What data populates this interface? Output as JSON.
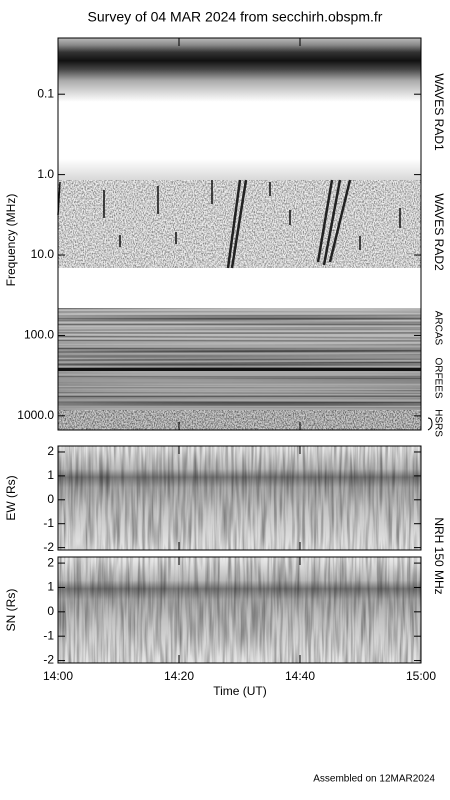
{
  "chart_data": [
    {
      "type": "spectrogram",
      "title": "Survey of 04 MAR 2024 from secchirh.obspm.fr",
      "ylabel": "Frequency (MHz)",
      "log": true,
      "inverted": true,
      "ylim": [
        0.02,
        1500
      ],
      "yticks": [
        0.1,
        {
          "value": 1,
          "label": "1.0"
        },
        {
          "value": 10,
          "label": "10.0"
        },
        {
          "value": 100,
          "label": "100.0"
        },
        {
          "value": 1000,
          "label": "1000.0"
        }
      ],
      "instruments": [
        "WAVES RAD1",
        "WAVES RAD2",
        "ARCAS",
        "ORFEES",
        "HSRS"
      ]
    },
    {
      "type": "heatmap",
      "ylabel": "EW (Rs)",
      "ylim": [
        -2.1,
        2.25
      ],
      "yticks": [
        2,
        1,
        0,
        -1,
        -2
      ]
    },
    {
      "type": "heatmap",
      "ylabel": "SN (Rs)",
      "ylim": [
        -2.1,
        2.25
      ],
      "yticks": [
        2,
        1,
        0,
        -1,
        -2
      ],
      "instrument": "NRH 150 MHz",
      "xlabel": "Time (UT)",
      "xlim": [
        840,
        900
      ],
      "xticks": [
        {
          "value": 840,
          "label": "14:00"
        },
        {
          "value": 860,
          "label": "14:20"
        },
        {
          "value": 880,
          "label": "14:40"
        },
        {
          "value": 900,
          "label": "15:00"
        }
      ]
    }
  ],
  "footer": "Assembled on 12MAR2024"
}
